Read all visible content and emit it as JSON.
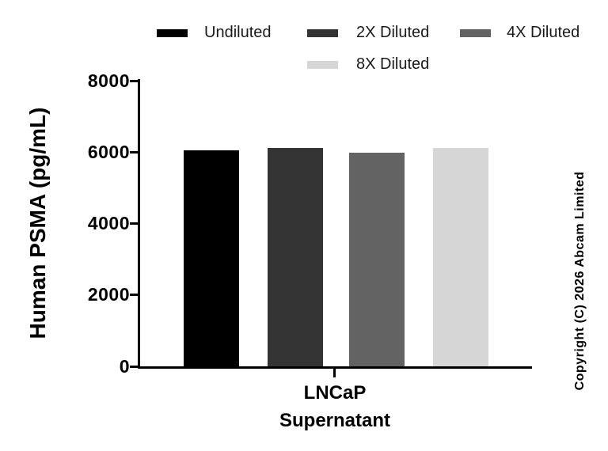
{
  "copyright": "Copyright (C) 2026 Abcam Limited",
  "chart_data": {
    "type": "bar",
    "title": "",
    "xlabel": "",
    "ylabel": "Human PSMA (pg/mL)",
    "categories": [
      "LNCaP Supernatant"
    ],
    "category_label_lines": [
      "LNCaP",
      "Supernatant"
    ],
    "ylim": [
      0,
      8000
    ],
    "y_ticks": [
      0,
      2000,
      4000,
      6000,
      8000
    ],
    "grid": false,
    "legend_position": "top",
    "background": "#ffffff",
    "axis_color": "#000000",
    "series": [
      {
        "name": "Undiluted",
        "color": "#000000",
        "values": [
          6060
        ]
      },
      {
        "name": "2X Diluted",
        "color": "#333333",
        "values": [
          6110
        ]
      },
      {
        "name": "4X Diluted",
        "color": "#636363",
        "values": [
          5990
        ]
      },
      {
        "name": "8X Diluted",
        "color": "#d6d6d6",
        "values": [
          6120
        ]
      }
    ]
  }
}
